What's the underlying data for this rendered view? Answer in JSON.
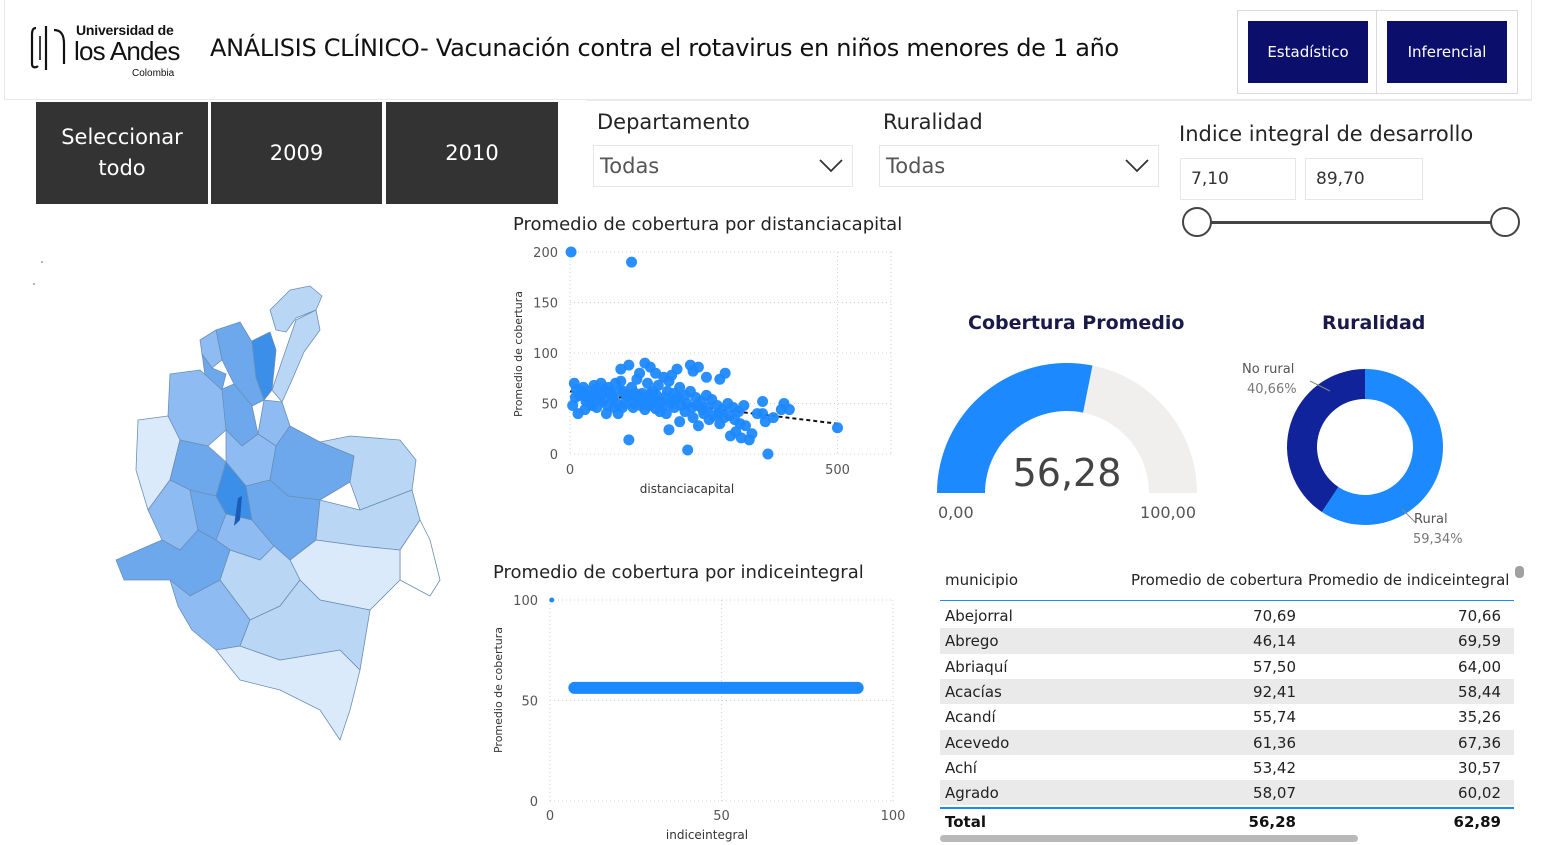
{
  "header": {
    "logo": {
      "line1": "Universidad de",
      "line2": "los Andes",
      "line3": "Colombia"
    },
    "title": "ANÁLISIS CLÍNICO- Vacunación contra el rotavirus en niños menores de 1 año",
    "nav": [
      {
        "label": "Estadístico"
      },
      {
        "label": "Inferencial"
      }
    ],
    "nav_color": "#0c0e6b"
  },
  "year_slicer": {
    "items": [
      {
        "label": "Seleccionar todo"
      },
      {
        "label": "2009"
      },
      {
        "label": "2010"
      }
    ]
  },
  "filters": {
    "departamento": {
      "label": "Departamento",
      "value": "Todas"
    },
    "ruralidad": {
      "label": "Ruralidad",
      "value": "Todas"
    },
    "indice": {
      "label": "Indice integral de desarrollo",
      "min": "7,10",
      "max": "89,70"
    }
  },
  "colors": {
    "accent": "#1d89ff",
    "dark_blue": "#11239a",
    "trend": "#111111"
  },
  "icons": {
    "dropdown": "chevron-down-icon",
    "logo": "los-andes-logo-icon"
  },
  "chart_data": [
    {
      "type": "scatter",
      "title": "Promedio de cobertura por distanciacapital",
      "xlabel": "distanciacapital",
      "ylabel": "Promedio de cobertura",
      "xlim": [
        0,
        600
      ],
      "ylim": [
        0,
        200
      ],
      "xticks": [
        "0",
        "500"
      ],
      "yticks": [
        "200",
        "150",
        "100",
        "50",
        "0"
      ],
      "trendline": {
        "x": [
          0,
          500
        ],
        "y": [
          62,
          30
        ]
      },
      "points": [
        [
          2,
          200
        ],
        [
          115,
          190
        ],
        [
          500,
          26
        ],
        [
          370,
          0
        ],
        [
          220,
          4
        ],
        [
          185,
          24
        ],
        [
          110,
          14
        ],
        [
          320,
          16
        ],
        [
          335,
          14
        ],
        [
          340,
          20
        ],
        [
          310,
          22
        ],
        [
          300,
          18
        ],
        [
          280,
          30
        ],
        [
          260,
          34
        ],
        [
          250,
          40
        ],
        [
          240,
          28
        ],
        [
          230,
          36
        ],
        [
          215,
          42
        ],
        [
          205,
          32
        ],
        [
          195,
          46
        ],
        [
          180,
          40
        ],
        [
          170,
          52
        ],
        [
          160,
          45
        ],
        [
          150,
          60
        ],
        [
          140,
          44
        ],
        [
          130,
          58
        ],
        [
          120,
          50
        ],
        [
          100,
          62
        ],
        [
          90,
          40
        ],
        [
          80,
          55
        ],
        [
          70,
          48
        ],
        [
          60,
          60
        ],
        [
          50,
          46
        ],
        [
          40,
          58
        ],
        [
          30,
          52
        ],
        [
          20,
          60
        ],
        [
          10,
          56
        ],
        [
          5,
          48
        ],
        [
          15,
          40
        ],
        [
          25,
          66
        ],
        [
          35,
          62
        ],
        [
          45,
          68
        ],
        [
          55,
          54
        ],
        [
          65,
          64
        ],
        [
          75,
          62
        ],
        [
          85,
          70
        ],
        [
          95,
          72
        ],
        [
          105,
          58
        ],
        [
          115,
          66
        ],
        [
          125,
          74
        ],
        [
          135,
          60
        ],
        [
          145,
          70
        ],
        [
          155,
          62
        ],
        [
          165,
          68
        ],
        [
          175,
          76
        ],
        [
          185,
          72
        ],
        [
          195,
          60
        ],
        [
          205,
          66
        ],
        [
          215,
          58
        ],
        [
          225,
          62
        ],
        [
          235,
          56
        ],
        [
          245,
          52
        ],
        [
          255,
          58
        ],
        [
          265,
          54
        ],
        [
          275,
          48
        ],
        [
          285,
          44
        ],
        [
          295,
          50
        ],
        [
          305,
          46
        ],
        [
          315,
          42
        ],
        [
          325,
          48
        ],
        [
          350,
          40
        ],
        [
          360,
          40
        ],
        [
          365,
          32
        ],
        [
          380,
          36
        ],
        [
          395,
          44
        ],
        [
          360,
          52
        ],
        [
          400,
          50
        ],
        [
          410,
          44
        ],
        [
          290,
          80
        ],
        [
          225,
          88
        ],
        [
          150,
          86
        ],
        [
          140,
          90
        ],
        [
          110,
          88
        ],
        [
          200,
          84
        ],
        [
          230,
          82
        ],
        [
          240,
          86
        ],
        [
          255,
          76
        ],
        [
          280,
          74
        ],
        [
          130,
          80
        ],
        [
          95,
          84
        ],
        [
          160,
          80
        ],
        [
          190,
          78
        ],
        [
          8,
          70
        ],
        [
          18,
          58
        ],
        [
          28,
          44
        ],
        [
          38,
          50
        ],
        [
          48,
          64
        ],
        [
          58,
          70
        ],
        [
          68,
          40
        ],
        [
          78,
          58
        ],
        [
          88,
          50
        ],
        [
          98,
          46
        ],
        [
          108,
          56
        ],
        [
          118,
          46
        ],
        [
          128,
          52
        ],
        [
          138,
          56
        ],
        [
          148,
          48
        ],
        [
          158,
          54
        ],
        [
          168,
          42
        ],
        [
          178,
          56
        ],
        [
          188,
          50
        ],
        [
          198,
          54
        ],
        [
          208,
          48
        ],
        [
          218,
          50
        ],
        [
          228,
          46
        ],
        [
          238,
          48
        ],
        [
          248,
          44
        ],
        [
          258,
          46
        ],
        [
          268,
          38
        ],
        [
          278,
          40
        ],
        [
          288,
          36
        ],
        [
          298,
          38
        ],
        [
          308,
          34
        ],
        [
          318,
          30
        ],
        [
          328,
          28
        ],
        [
          12,
          64
        ],
        [
          22,
          62
        ],
        [
          32,
          56
        ],
        [
          42,
          48
        ],
        [
          52,
          58
        ],
        [
          62,
          52
        ],
        [
          72,
          66
        ],
        [
          82,
          46
        ],
        [
          92,
          62
        ],
        [
          102,
          50
        ],
        [
          112,
          58
        ],
        [
          122,
          60
        ],
        [
          132,
          48
        ],
        [
          142,
          54
        ],
        [
          152,
          50
        ],
        [
          162,
          58
        ],
        [
          172,
          46
        ],
        [
          182,
          62
        ],
        [
          192,
          52
        ],
        [
          202,
          56
        ]
      ]
    },
    {
      "type": "scatter",
      "title": "Promedio de cobertura por indiceintegral",
      "xlabel": "indiceintegral",
      "ylabel": "Promedio de cobertura",
      "xlim": [
        0,
        100
      ],
      "ylim": [
        0,
        100
      ],
      "xticks": [
        "0",
        "50",
        "100"
      ],
      "yticks": [
        "100",
        "50",
        "0"
      ],
      "band": {
        "x_from": 7.1,
        "x_to": 89.7,
        "y": 56.28
      },
      "points": [
        [
          0.5,
          100
        ]
      ]
    },
    {
      "type": "gauge",
      "title": "Cobertura Promedio",
      "value": 56.28,
      "value_label": "56,28",
      "min_label": "0,00",
      "max_label": "100,00",
      "min": 0,
      "max": 100
    },
    {
      "type": "pie",
      "title": "Ruralidad",
      "slices": [
        {
          "label": "Rural",
          "value": 59.34,
          "value_label": "59,34%",
          "color": "#1d89ff"
        },
        {
          "label": "No rural",
          "value": 40.66,
          "value_label": "40,66%",
          "color": "#11239a"
        }
      ]
    }
  ],
  "table": {
    "columns": [
      "municipio",
      "Promedio de cobertura",
      "Promedio de indiceintegral"
    ],
    "rows": [
      [
        "Abejorral",
        "70,69",
        "70,66"
      ],
      [
        "Abrego",
        "46,14",
        "69,59"
      ],
      [
        "Abriaquí",
        "57,50",
        "64,00"
      ],
      [
        "Acacías",
        "92,41",
        "58,44"
      ],
      [
        "Acandí",
        "55,74",
        "35,26"
      ],
      [
        "Acevedo",
        "61,36",
        "67,36"
      ],
      [
        "Achí",
        "53,42",
        "30,57"
      ],
      [
        "Agrado",
        "58,07",
        "60,02"
      ]
    ],
    "total": [
      "Total",
      "56,28",
      "62,89"
    ]
  }
}
